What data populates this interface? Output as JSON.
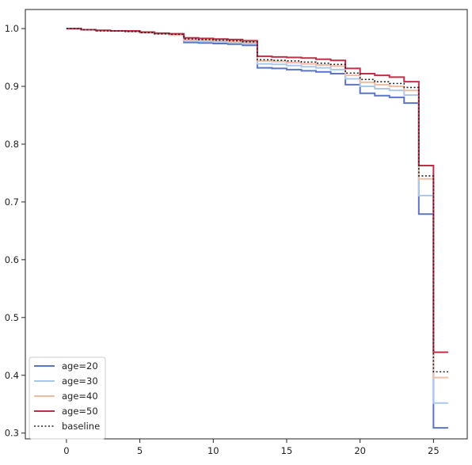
{
  "chart_data": {
    "type": "line",
    "step": true,
    "title": "",
    "xlabel": "",
    "ylabel": "",
    "xlim": [
      -2.8,
      27.3
    ],
    "ylim": [
      0.29,
      1.033
    ],
    "xticks": [
      0,
      5,
      10,
      15,
      20,
      25
    ],
    "yticks": [
      0.3,
      0.4,
      0.5,
      0.6,
      0.7,
      0.8,
      0.9,
      1.0
    ],
    "xtick_labels": [
      "0",
      "5",
      "10",
      "15",
      "20",
      "25"
    ],
    "ytick_labels": [
      "0.3",
      "0.4",
      "0.5",
      "0.6",
      "0.7",
      "0.8",
      "0.9",
      "1.0"
    ],
    "grid": false,
    "legend_position": "lower-left",
    "x": [
      0,
      1,
      2,
      3,
      4,
      5,
      6,
      7,
      8,
      9,
      10,
      11,
      12,
      13,
      14,
      15,
      16,
      17,
      18,
      19,
      20,
      21,
      22,
      23,
      24,
      25,
      26
    ],
    "series": [
      {
        "name": "age=20",
        "color": "#5a74c8",
        "style": "solid",
        "values": [
          1.0,
          0.998,
          0.996,
          0.996,
          0.995,
          0.993,
          0.991,
          0.989,
          0.976,
          0.975,
          0.974,
          0.973,
          0.971,
          0.932,
          0.931,
          0.929,
          0.927,
          0.925,
          0.922,
          0.903,
          0.888,
          0.884,
          0.881,
          0.871,
          0.679,
          0.309,
          0.309
        ]
      },
      {
        "name": "age=30",
        "color": "#aac8ec",
        "style": "solid",
        "values": [
          1.0,
          0.998,
          0.996,
          0.996,
          0.995,
          0.993,
          0.991,
          0.989,
          0.979,
          0.978,
          0.977,
          0.976,
          0.974,
          0.939,
          0.938,
          0.936,
          0.934,
          0.932,
          0.929,
          0.913,
          0.9,
          0.896,
          0.893,
          0.885,
          0.711,
          0.352,
          0.352
        ]
      },
      {
        "name": "age=40",
        "color": "#f1bca4",
        "style": "solid",
        "values": [
          1.0,
          0.998,
          0.996,
          0.996,
          0.995,
          0.993,
          0.991,
          0.989,
          0.981,
          0.98,
          0.979,
          0.978,
          0.976,
          0.944,
          0.943,
          0.941,
          0.939,
          0.937,
          0.935,
          0.919,
          0.907,
          0.903,
          0.9,
          0.893,
          0.74,
          0.396,
          0.396
        ]
      },
      {
        "name": "age=50",
        "color": "#c12e48",
        "style": "solid",
        "values": [
          1.0,
          0.998,
          0.997,
          0.996,
          0.996,
          0.994,
          0.992,
          0.991,
          0.984,
          0.983,
          0.982,
          0.981,
          0.979,
          0.952,
          0.951,
          0.95,
          0.949,
          0.947,
          0.945,
          0.931,
          0.922,
          0.919,
          0.916,
          0.908,
          0.763,
          0.44,
          0.44
        ]
      },
      {
        "name": "baseline",
        "color": "#222222",
        "style": "dotted",
        "values": [
          1.0,
          0.998,
          0.996,
          0.996,
          0.995,
          0.993,
          0.991,
          0.99,
          0.982,
          0.981,
          0.98,
          0.979,
          0.977,
          0.946,
          0.945,
          0.944,
          0.942,
          0.94,
          0.938,
          0.923,
          0.912,
          0.908,
          0.905,
          0.898,
          0.745,
          0.406,
          0.406
        ]
      }
    ]
  }
}
